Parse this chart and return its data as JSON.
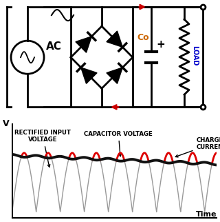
{
  "bg_color": "#ffffff",
  "circuit_color": "#000000",
  "red_arrow_color": "#cc0000",
  "ac_label": "AC",
  "cap_label": "Co",
  "plus_label": "+",
  "load_label": "LOAD",
  "rectified_label": "RECTIFIED INPUT\nVOLTAGE",
  "cap_voltage_label": "CAPACITOR VOLTAGE",
  "charge_label": "CHARGE\nCURRENT",
  "v_label": "V",
  "time_label": "Time",
  "red_wave_color": "#dd0000",
  "gray_wave_color": "#999999",
  "black_wave_color": "#111111",
  "cap_color": "#cc6600",
  "load_color": "#0000cc",
  "circuit_lw": 2.0,
  "n_cycles": 5,
  "wave_freq": 0.9
}
